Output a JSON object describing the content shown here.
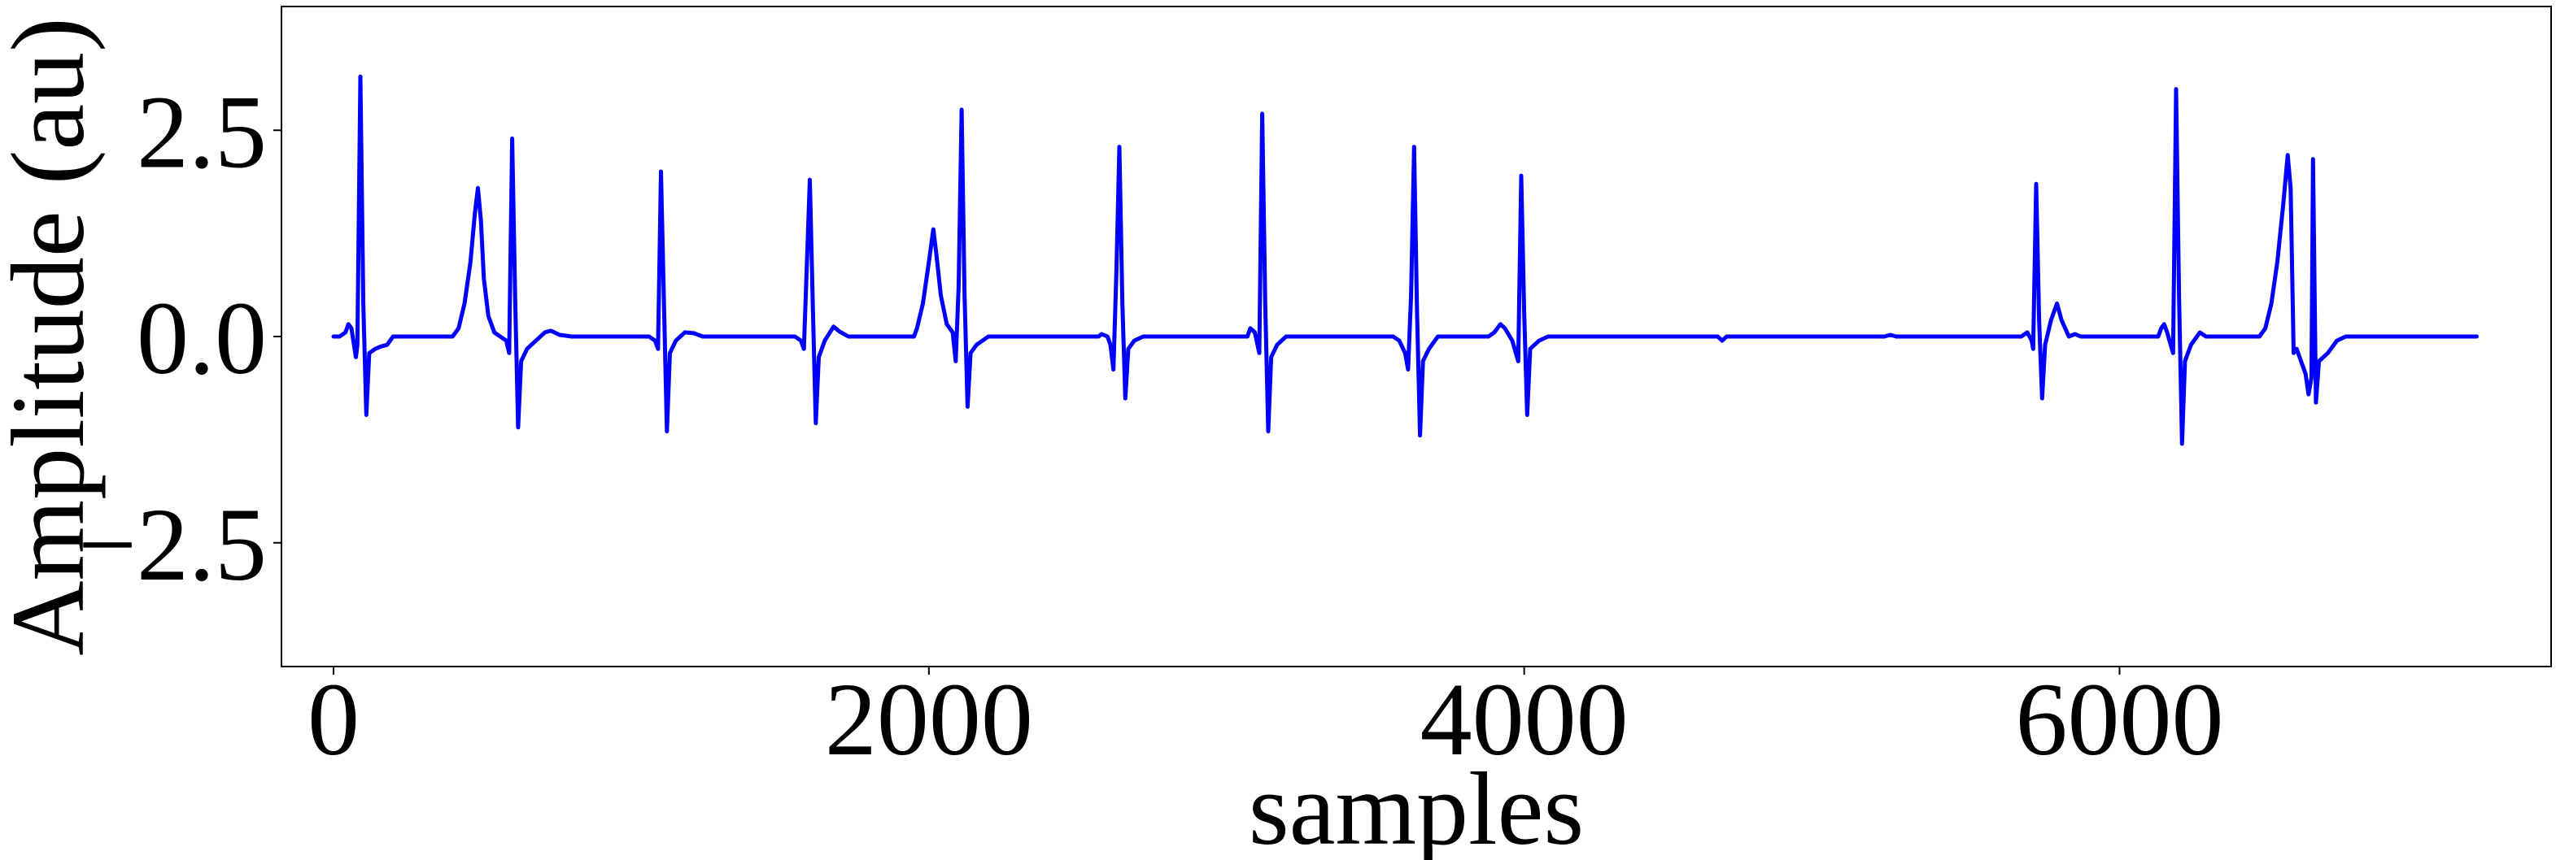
{
  "chart_data": {
    "type": "line",
    "title": "",
    "xlabel": "samples",
    "ylabel": "Amplitude (au)",
    "xlim": [
      -175,
      7450
    ],
    "ylim": [
      -4.0,
      4.0
    ],
    "xticks": [
      0,
      2000,
      4000,
      6000
    ],
    "xtick_labels": [
      "0",
      "2000",
      "4000",
      "6000"
    ],
    "yticks": [
      -2.5,
      0.0,
      2.5
    ],
    "ytick_labels": [
      "−2.5",
      "0.0",
      "2.5"
    ],
    "grid": false,
    "legend": "none",
    "series": [
      {
        "color": "#0000ff",
        "points": [
          [
            0,
            0
          ],
          [
            20,
            0
          ],
          [
            40,
            0.05
          ],
          [
            50,
            0.15
          ],
          [
            60,
            0.1
          ],
          [
            75,
            -0.25
          ],
          [
            80,
            -0.1
          ],
          [
            90,
            3.15
          ],
          [
            100,
            0.4
          ],
          [
            110,
            -0.95
          ],
          [
            120,
            -0.2
          ],
          [
            140,
            -0.15
          ],
          [
            160,
            -0.12
          ],
          [
            180,
            -0.1
          ],
          [
            200,
            0
          ],
          [
            400,
            0
          ],
          [
            420,
            0.1
          ],
          [
            440,
            0.4
          ],
          [
            460,
            0.9
          ],
          [
            475,
            1.5
          ],
          [
            485,
            1.8
          ],
          [
            495,
            1.4
          ],
          [
            505,
            0.7
          ],
          [
            520,
            0.25
          ],
          [
            540,
            0.05
          ],
          [
            560,
            0
          ],
          [
            580,
            -0.05
          ],
          [
            590,
            -0.2
          ],
          [
            600,
            2.4
          ],
          [
            610,
            0.5
          ],
          [
            620,
            -1.1
          ],
          [
            630,
            -0.3
          ],
          [
            650,
            -0.15
          ],
          [
            680,
            -0.05
          ],
          [
            710,
            0.05
          ],
          [
            730,
            0.07
          ],
          [
            760,
            0.02
          ],
          [
            800,
            0
          ],
          [
            1060,
            0
          ],
          [
            1080,
            -0.05
          ],
          [
            1090,
            -0.15
          ],
          [
            1100,
            2.0
          ],
          [
            1110,
            0.4
          ],
          [
            1120,
            -1.15
          ],
          [
            1130,
            -0.2
          ],
          [
            1150,
            -0.05
          ],
          [
            1180,
            0.05
          ],
          [
            1210,
            0.04
          ],
          [
            1240,
            0
          ],
          [
            1550,
            0
          ],
          [
            1570,
            -0.05
          ],
          [
            1580,
            -0.15
          ],
          [
            1600,
            1.9
          ],
          [
            1610,
            0.4
          ],
          [
            1620,
            -1.05
          ],
          [
            1630,
            -0.25
          ],
          [
            1650,
            -0.05
          ],
          [
            1680,
            0.12
          ],
          [
            1700,
            0.06
          ],
          [
            1730,
            0
          ],
          [
            1950,
            0
          ],
          [
            1960,
            0.1
          ],
          [
            1980,
            0.4
          ],
          [
            2000,
            0.9
          ],
          [
            2015,
            1.3
          ],
          [
            2025,
            1.0
          ],
          [
            2040,
            0.5
          ],
          [
            2060,
            0.15
          ],
          [
            2080,
            0.05
          ],
          [
            2090,
            -0.3
          ],
          [
            2100,
            0.6
          ],
          [
            2110,
            2.75
          ],
          [
            2120,
            0.5
          ],
          [
            2130,
            -0.85
          ],
          [
            2140,
            -0.2
          ],
          [
            2160,
            -0.1
          ],
          [
            2200,
            0
          ],
          [
            2570,
            0
          ],
          [
            2580,
            0.03
          ],
          [
            2600,
            0
          ],
          [
            2610,
            -0.1
          ],
          [
            2620,
            -0.4
          ],
          [
            2630,
            0.8
          ],
          [
            2640,
            2.3
          ],
          [
            2650,
            0.4
          ],
          [
            2660,
            -0.75
          ],
          [
            2670,
            -0.15
          ],
          [
            2690,
            -0.05
          ],
          [
            2720,
            0
          ],
          [
            3070,
            0
          ],
          [
            3080,
            0.1
          ],
          [
            3095,
            0.05
          ],
          [
            3110,
            -0.2
          ],
          [
            3120,
            2.7
          ],
          [
            3130,
            0.4
          ],
          [
            3140,
            -1.15
          ],
          [
            3150,
            -0.25
          ],
          [
            3170,
            -0.1
          ],
          [
            3200,
            0
          ],
          [
            3560,
            0
          ],
          [
            3580,
            -0.05
          ],
          [
            3600,
            -0.2
          ],
          [
            3610,
            -0.4
          ],
          [
            3620,
            0.5
          ],
          [
            3630,
            2.3
          ],
          [
            3640,
            0.3
          ],
          [
            3650,
            -1.2
          ],
          [
            3660,
            -0.3
          ],
          [
            3680,
            -0.15
          ],
          [
            3710,
            0
          ],
          [
            3880,
            0
          ],
          [
            3900,
            0.05
          ],
          [
            3920,
            0.15
          ],
          [
            3935,
            0.1
          ],
          [
            3960,
            -0.05
          ],
          [
            3980,
            -0.3
          ],
          [
            3990,
            1.95
          ],
          [
            4000,
            0.3
          ],
          [
            4010,
            -0.95
          ],
          [
            4020,
            -0.15
          ],
          [
            4050,
            -0.05
          ],
          [
            4080,
            0
          ],
          [
            4650,
            0
          ],
          [
            4665,
            -0.05
          ],
          [
            4680,
            0
          ],
          [
            5210,
            0
          ],
          [
            5230,
            0.02
          ],
          [
            5250,
            0
          ],
          [
            5670,
            0
          ],
          [
            5690,
            0.05
          ],
          [
            5705,
            -0.05
          ],
          [
            5710,
            -0.15
          ],
          [
            5720,
            1.85
          ],
          [
            5730,
            0.2
          ],
          [
            5740,
            -0.75
          ],
          [
            5750,
            -0.1
          ],
          [
            5770,
            0.2
          ],
          [
            5790,
            0.4
          ],
          [
            5805,
            0.2
          ],
          [
            5830,
            0
          ],
          [
            5850,
            0.03
          ],
          [
            5870,
            0
          ],
          [
            6130,
            0
          ],
          [
            6140,
            0.1
          ],
          [
            6150,
            0.15
          ],
          [
            6160,
            0.05
          ],
          [
            6180,
            -0.2
          ],
          [
            6190,
            3.0
          ],
          [
            6200,
            0.5
          ],
          [
            6210,
            -1.3
          ],
          [
            6220,
            -0.3
          ],
          [
            6240,
            -0.1
          ],
          [
            6260,
            0
          ],
          [
            6270,
            0.05
          ],
          [
            6290,
            0
          ],
          [
            6470,
            0
          ],
          [
            6490,
            0.1
          ],
          [
            6510,
            0.4
          ],
          [
            6530,
            0.9
          ],
          [
            6550,
            1.6
          ],
          [
            6565,
            2.2
          ],
          [
            6575,
            1.8
          ],
          [
            6585,
            -0.2
          ],
          [
            6595,
            -0.15
          ],
          [
            6610,
            -0.3
          ],
          [
            6625,
            -0.45
          ],
          [
            6635,
            -0.7
          ],
          [
            6645,
            -0.5
          ],
          [
            6650,
            2.15
          ],
          [
            6660,
            -0.8
          ],
          [
            6670,
            -0.3
          ],
          [
            6700,
            -0.2
          ],
          [
            6730,
            -0.05
          ],
          [
            6760,
            0
          ],
          [
            7200,
            0
          ]
        ]
      }
    ]
  }
}
